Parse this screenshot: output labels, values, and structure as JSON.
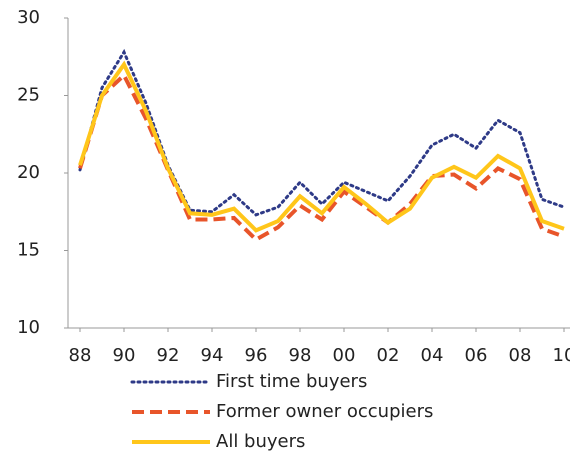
{
  "chart_data": {
    "type": "line",
    "x": [
      1988,
      1989,
      1990,
      1991,
      1992,
      1993,
      1994,
      1995,
      1996,
      1997,
      1998,
      1999,
      2000,
      2001,
      2002,
      2003,
      2004,
      2005,
      2006,
      2007,
      2008,
      2009,
      2010
    ],
    "series": [
      {
        "name": "First time buyers",
        "color": "#2e3a87",
        "dash": "dotted",
        "values": [
          20.2,
          25.5,
          27.8,
          24.5,
          20.5,
          17.6,
          17.5,
          18.6,
          17.3,
          17.8,
          19.4,
          18.0,
          19.4,
          18.8,
          18.2,
          19.8,
          21.8,
          22.5,
          21.6,
          23.4,
          22.6,
          18.3,
          17.8
        ]
      },
      {
        "name": "Former owner occupiers",
        "color": "#e8552a",
        "dash": "dashed",
        "values": [
          20.3,
          25.0,
          26.3,
          23.5,
          20.2,
          17.0,
          17.0,
          17.1,
          15.7,
          16.5,
          17.9,
          17.0,
          18.8,
          17.8,
          16.8,
          18.0,
          19.8,
          19.9,
          19.0,
          20.3,
          19.6,
          16.4,
          15.9
        ]
      },
      {
        "name": "All buyers",
        "color": "#ffc61a",
        "dash": "solid",
        "values": [
          20.5,
          25.0,
          27.0,
          24.0,
          20.3,
          17.4,
          17.3,
          17.7,
          16.3,
          16.9,
          18.5,
          17.4,
          19.1,
          18.0,
          16.8,
          17.7,
          19.7,
          20.4,
          19.7,
          21.1,
          20.3,
          16.9,
          16.4
        ]
      }
    ],
    "xlim": [
      1987.5,
      2010.1
    ],
    "xticks": [
      {
        "value": 1988,
        "label": "88"
      },
      {
        "value": 1990,
        "label": "90"
      },
      {
        "value": 1992,
        "label": "92"
      },
      {
        "value": 1994,
        "label": "94"
      },
      {
        "value": 1996,
        "label": "96"
      },
      {
        "value": 1998,
        "label": "98"
      },
      {
        "value": 2000,
        "label": "00"
      },
      {
        "value": 2002,
        "label": "02"
      },
      {
        "value": 2004,
        "label": "04"
      },
      {
        "value": 2006,
        "label": "06"
      },
      {
        "value": 2008,
        "label": "08"
      },
      {
        "value": 2010,
        "label": "10"
      }
    ],
    "ylim": [
      10,
      30
    ],
    "yticks": [
      10,
      15,
      20,
      25,
      30
    ],
    "grid": false
  }
}
